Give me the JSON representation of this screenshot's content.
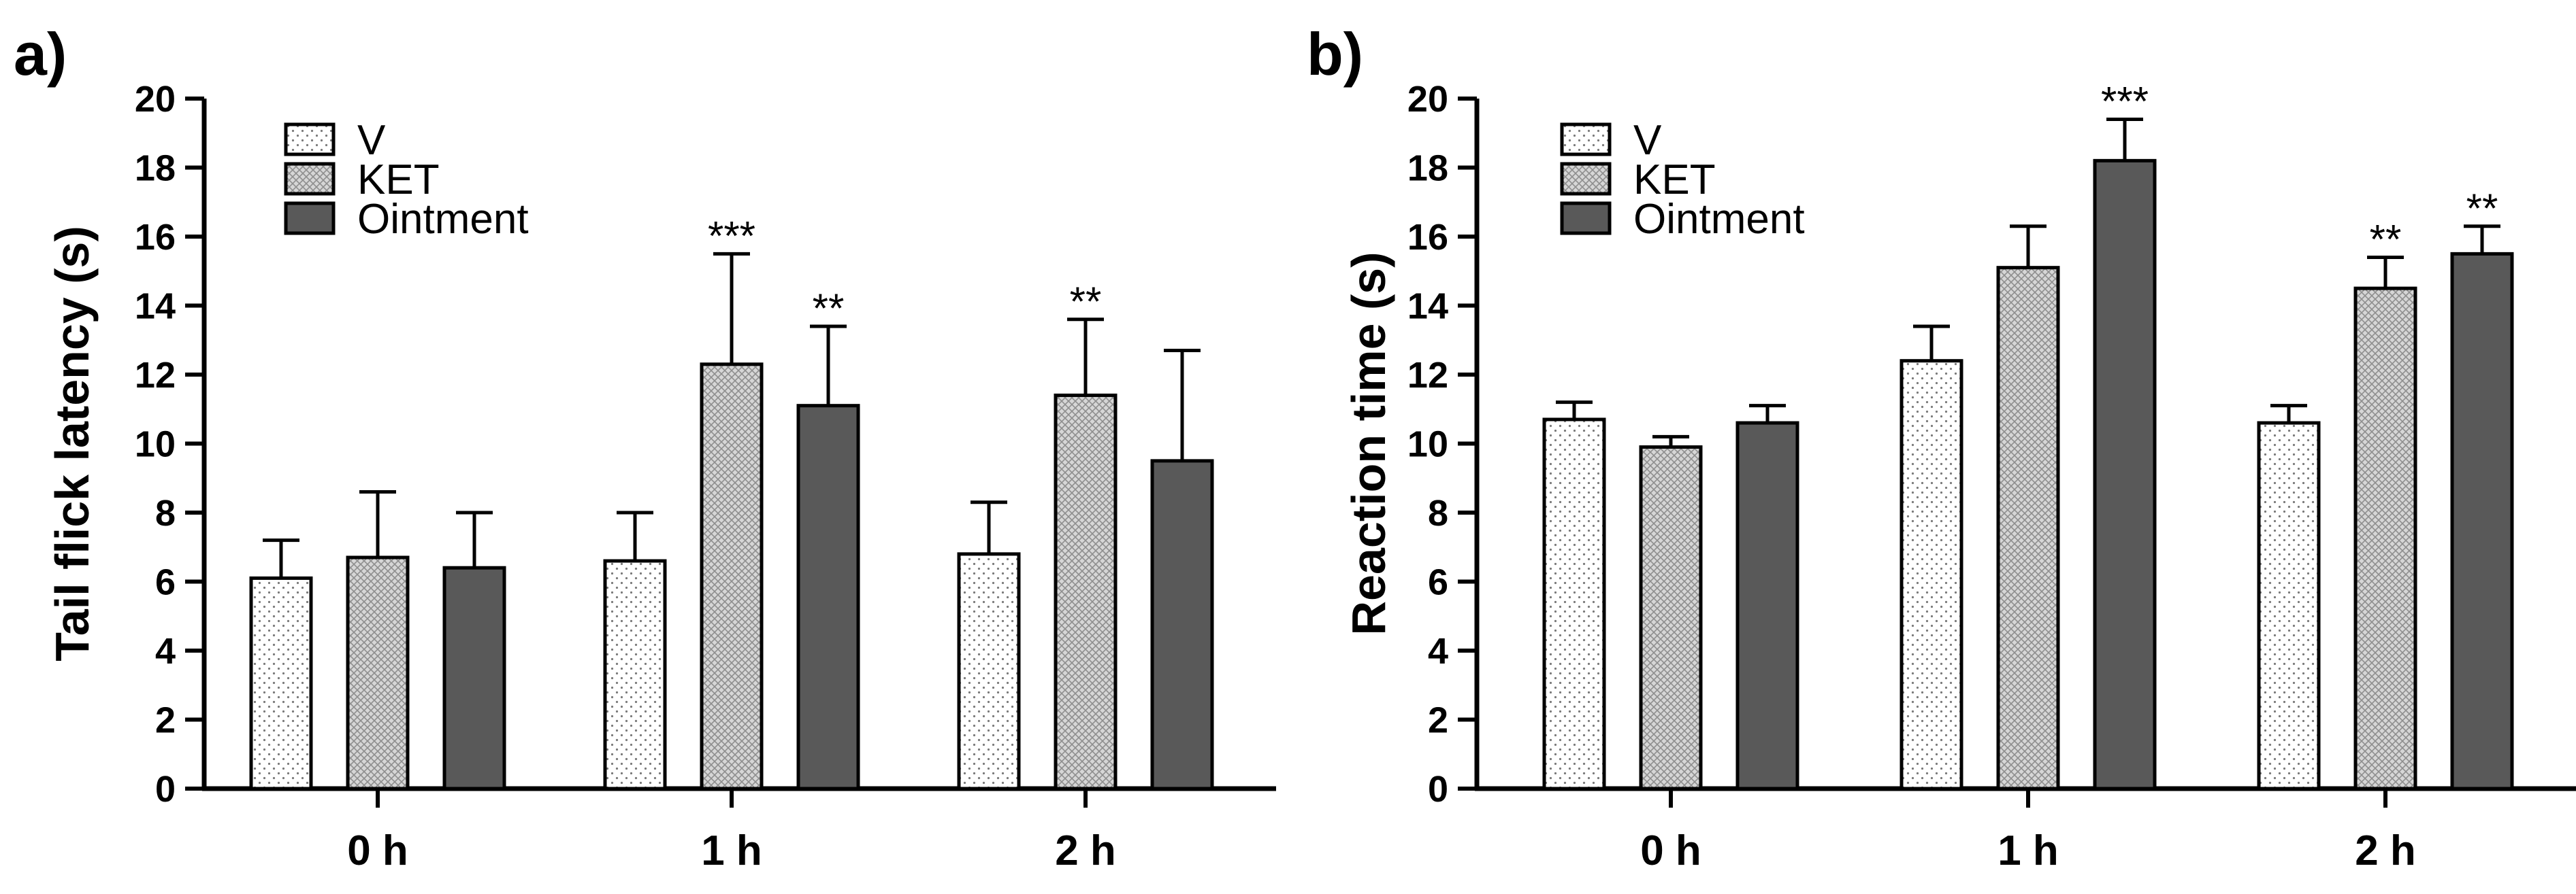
{
  "figure": {
    "background": "#ffffff",
    "colors": {
      "axis": "#000000",
      "v_fill": "#ffffff",
      "ket_fill": "#c8c8c8",
      "ointment_fill": "#595959",
      "error_bar": "#000000"
    },
    "patterns": {
      "V": "dots",
      "KET": "crosshatch",
      "Ointment": "solid"
    }
  },
  "chart_data": [
    {
      "panel": "a)",
      "type": "bar",
      "title": "",
      "xlabel": "",
      "ylabel": "Tail flick latency (s)",
      "ylim": [
        0,
        20
      ],
      "yticks": [
        0,
        2,
        4,
        6,
        8,
        10,
        12,
        14,
        16,
        18,
        20
      ],
      "categories": [
        "0 h",
        "1 h",
        "2 h"
      ],
      "legend_position": "top-left",
      "series": [
        {
          "name": "V",
          "values": [
            6.1,
            6.6,
            6.8
          ],
          "errors": [
            1.1,
            1.4,
            1.5
          ],
          "significance": [
            "",
            "",
            ""
          ]
        },
        {
          "name": "KET",
          "values": [
            6.7,
            12.3,
            11.4
          ],
          "errors": [
            1.9,
            3.2,
            2.2
          ],
          "significance": [
            "",
            "***",
            "**"
          ]
        },
        {
          "name": "Ointment",
          "values": [
            6.4,
            11.1,
            9.5
          ],
          "errors": [
            1.6,
            2.3,
            3.2
          ],
          "significance": [
            "",
            "**",
            ""
          ]
        }
      ]
    },
    {
      "panel": "b)",
      "type": "bar",
      "title": "",
      "xlabel": "",
      "ylabel": "Reaction time (s)",
      "ylim": [
        0,
        20
      ],
      "yticks": [
        0,
        2,
        4,
        6,
        8,
        10,
        12,
        14,
        16,
        18,
        20
      ],
      "categories": [
        "0 h",
        "1 h",
        "2 h"
      ],
      "legend_position": "top-left",
      "series": [
        {
          "name": "V",
          "values": [
            10.7,
            12.4,
            10.6
          ],
          "errors": [
            0.5,
            1.0,
            0.5
          ],
          "significance": [
            "",
            "",
            ""
          ]
        },
        {
          "name": "KET",
          "values": [
            9.9,
            15.1,
            14.5
          ],
          "errors": [
            0.3,
            1.2,
            0.9
          ],
          "significance": [
            "",
            "",
            "**"
          ]
        },
        {
          "name": "Ointment",
          "values": [
            10.6,
            18.2,
            15.5
          ],
          "errors": [
            0.5,
            1.2,
            0.8
          ],
          "significance": [
            "",
            "***",
            "**"
          ]
        }
      ]
    }
  ]
}
